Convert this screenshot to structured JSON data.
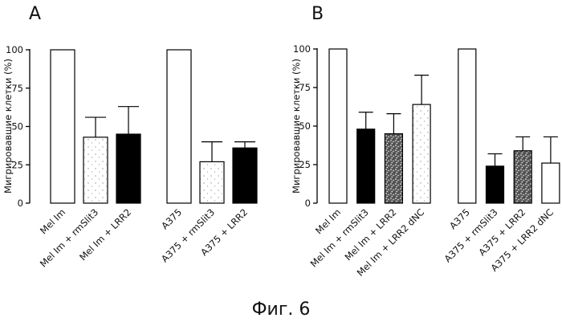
{
  "figure": {
    "caption": "Фиг. 6"
  },
  "chart_data": [
    {
      "type": "bar",
      "panel": "A",
      "ylabel": "Мигрировавшие клетки (%)",
      "ylim": [
        0,
        100
      ],
      "yticks": [
        "0",
        "25",
        "50",
        "75",
        "100"
      ],
      "categories": [
        "Mel Im",
        "Mel Im + rmSlit3",
        "Mel Im + LRR2",
        "A375",
        "A375 + rmSlit3",
        "A375 + LRR2"
      ],
      "values": [
        100,
        43,
        45,
        100,
        27,
        36
      ],
      "errors": [
        0,
        13,
        18,
        0,
        13,
        4
      ],
      "fills": [
        "white",
        "dotted",
        "black",
        "white",
        "dotted",
        "black"
      ]
    },
    {
      "type": "bar",
      "panel": "B",
      "ylabel": "Мигрировавшие клетки (%)",
      "ylim": [
        0,
        100
      ],
      "yticks": [
        "0",
        "25",
        "50",
        "75",
        "100"
      ],
      "categories": [
        "Mel Im",
        "Mel Im + rmSlit3",
        "Mel Im + LRR2",
        "Mel Im + LRR2 dNC",
        "A375",
        "A375 + rmSlit3",
        "A375 + LRR2",
        "A375 + LRR2 dNC"
      ],
      "values": [
        100,
        48,
        45,
        64,
        100,
        24,
        34,
        26
      ],
      "errors": [
        0,
        11,
        13,
        19,
        0,
        8,
        9,
        17
      ],
      "fills": [
        "white",
        "black",
        "speckle",
        "dotted",
        "white",
        "black",
        "speckle",
        "white"
      ]
    }
  ]
}
